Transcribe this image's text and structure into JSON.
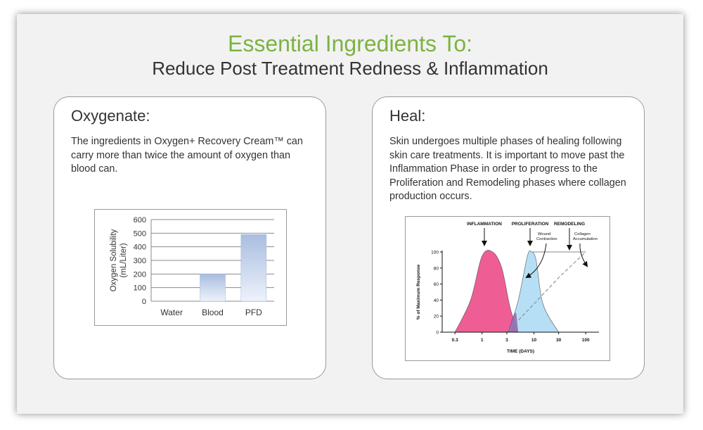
{
  "header": {
    "title": "Essential Ingredients To:",
    "subtitle": "Reduce Post Treatment Redness & Inflammation"
  },
  "left_card": {
    "heading": "Oxygenate:",
    "body": "The ingredients in Oxygen+ Recovery Cream™ can carry more than twice the amount of oxygen than blood can."
  },
  "right_card": {
    "heading": "Heal:",
    "body": "Skin undergoes multiple phases of healing following skin care treatments. It is important to move past the Inflammation Phase in order to progress to the Proliferation and Remodeling phases where collagen production occurs."
  },
  "chart_data": [
    {
      "type": "bar",
      "categories": [
        "Water",
        "Blood",
        "PFD"
      ],
      "values": [
        0,
        200,
        490
      ],
      "ylabel": "Oxygen Solubility (mL/Liter)",
      "ylabel_lines": [
        "Oxygen Solubility",
        "(mL/Liter)"
      ],
      "yticks": [
        0,
        100,
        200,
        300,
        400,
        500,
        600
      ],
      "ylim": [
        0,
        600
      ],
      "grid": true,
      "bar_color": "#a9bde0"
    },
    {
      "type": "area",
      "x_scale": "log",
      "xlabel": "TIME (DAYS)",
      "ylabel": "% of Maximum Response",
      "xticks": [
        "0.3",
        "1",
        "3",
        "10",
        "30",
        "100"
      ],
      "yticks": [
        0,
        20,
        40,
        60,
        80,
        100
      ],
      "ylim": [
        0,
        100
      ],
      "annotations": [
        "INFLAMMATION",
        "PROLIFERATION",
        "REMODELING",
        "Wound Contraction",
        "Collagen Accumulation"
      ],
      "series": [
        {
          "name": "INFLAMMATION",
          "color": "#ee5e94",
          "x": [
            0.3,
            0.6,
            1.0,
            1.6,
            2.4,
            3.5,
            5.0
          ],
          "y": [
            0,
            40,
            95,
            100,
            80,
            30,
            0
          ]
        },
        {
          "name": "PROLIFERATION",
          "color": "#a9d9f3",
          "x": [
            3.2,
            5,
            7.5,
            9,
            11,
            15,
            30
          ],
          "y": [
            0,
            40,
            95,
            100,
            90,
            35,
            0
          ]
        },
        {
          "name": "REMODELING",
          "x": [
            3,
            10,
            30,
            100
          ],
          "y": [
            0,
            35,
            68,
            100
          ]
        }
      ]
    }
  ]
}
